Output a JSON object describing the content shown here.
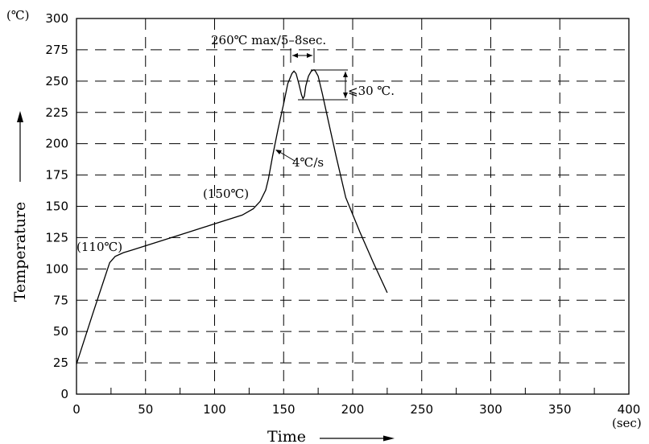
{
  "chart_data": {
    "type": "line",
    "title": "",
    "xlabel": "Time",
    "ylabel": "Temperature",
    "x_unit": "(sec)",
    "y_unit": "(℃)",
    "xlim": [
      0,
      400
    ],
    "ylim": [
      0,
      300
    ],
    "xticks": [
      0,
      50,
      100,
      150,
      200,
      250,
      300,
      350,
      400
    ],
    "yticks": [
      0,
      25,
      50,
      75,
      100,
      125,
      150,
      175,
      200,
      225,
      250,
      275,
      300
    ],
    "grid": true,
    "series": [
      {
        "x": [
          0,
          12,
          24,
          28,
          34,
          40,
          60,
          80,
          100,
          120,
          128,
          133,
          137,
          139,
          142,
          146,
          150,
          153,
          156,
          157.5,
          159,
          161,
          163,
          164,
          165,
          166,
          168,
          170,
          172,
          173,
          175,
          178,
          182,
          188,
          195,
          205,
          215,
          225
        ],
        "y": [
          24,
          65,
          105,
          110,
          113,
          115,
          122,
          129,
          136,
          143,
          148,
          154,
          163,
          172,
          190,
          212,
          232,
          248,
          256,
          258,
          256,
          248,
          239,
          236,
          238,
          246,
          254,
          258,
          259,
          258,
          254,
          240,
          220,
          190,
          157,
          130,
          105,
          81
        ]
      }
    ],
    "annotations": {
      "peak_label": "260℃  max/5–8sec.",
      "delta_label": "⩽30 ℃.",
      "ramp_label": "4℃/s",
      "label_110": "(110℃)",
      "label_150": "(150℃)"
    }
  }
}
